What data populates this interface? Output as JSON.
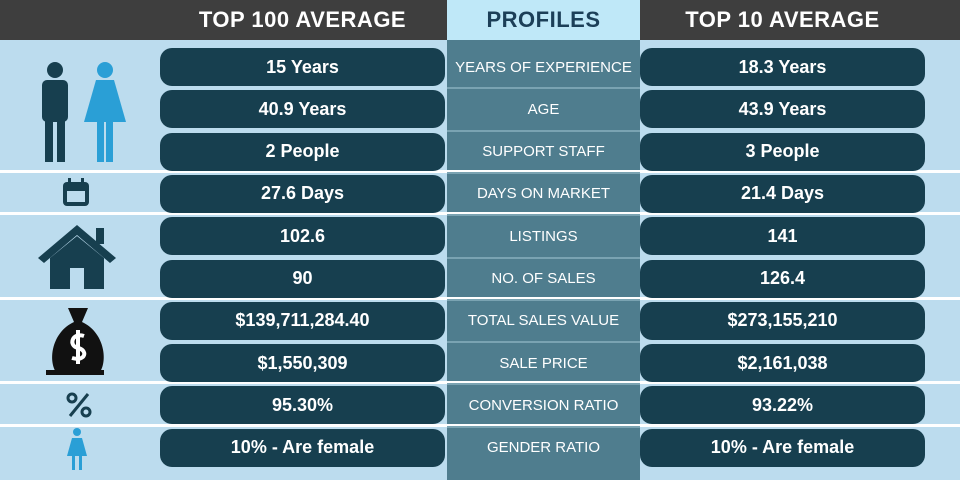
{
  "header": {
    "columns": [
      "TOP 100 AVERAGE",
      "PROFILES",
      "TOP 10 AVERAGE"
    ]
  },
  "table": {
    "rows": [
      [
        "15 Years",
        "YEARS OF EXPERIENCE",
        "18.3 Years"
      ],
      [
        "40.9 Years",
        "AGE",
        "43.9 Years"
      ],
      [
        "2 People",
        "SUPPORT STAFF",
        "3 People"
      ],
      [
        "27.6 Days",
        "DAYS ON MARKET",
        "21.4 Days"
      ],
      [
        "102.6",
        "LISTINGS",
        "141"
      ],
      [
        "90",
        "NO. OF SALES",
        "126.4"
      ],
      [
        "$139,711,284.40",
        "TOTAL SALES VALUE",
        "$273,155,210"
      ],
      [
        "$1,550,309",
        "SALE PRICE",
        "$2,161,038"
      ],
      [
        "95.30%",
        "CONVERSION RATIO",
        "93.22%"
      ],
      [
        "10% - Are female",
        "GENDER RATIO",
        "10% - Are female"
      ]
    ]
  }
}
